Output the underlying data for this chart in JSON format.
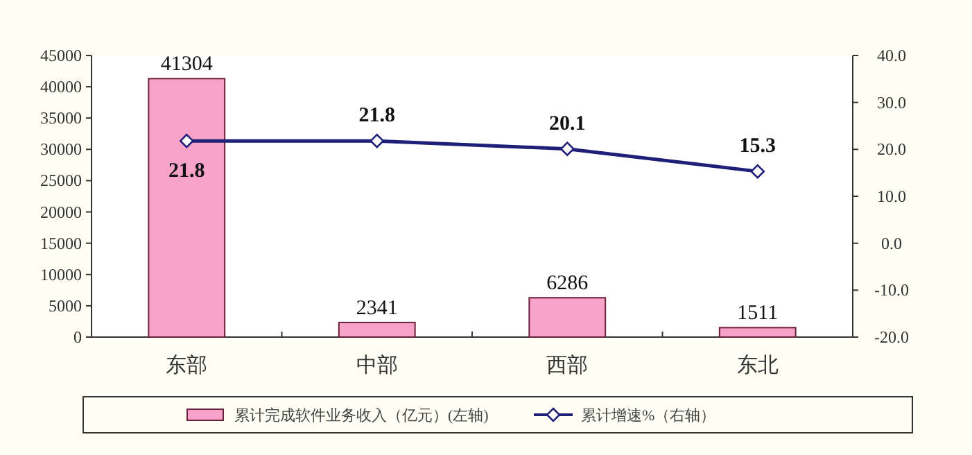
{
  "chart_data": {
    "type": "bar",
    "categories": [
      "东部",
      "中部",
      "西部",
      "东北"
    ],
    "series": [
      {
        "name": "累计完成软件业务收入（亿元）(左轴)",
        "color": "#f7a3c9",
        "values": [
          41304,
          2341,
          6286,
          1511
        ]
      },
      {
        "name": "累计增速%（右轴）",
        "type": "line",
        "axis": "y2",
        "color": "#1f1f7a",
        "marker": "diamond",
        "values": [
          21.8,
          21.8,
          20.1,
          15.3
        ]
      }
    ],
    "ylim": [
      0,
      45000
    ],
    "yticks": [
      0,
      5000,
      10000,
      15000,
      20000,
      25000,
      30000,
      35000,
      40000,
      45000
    ],
    "y2lim": [
      -20,
      40
    ],
    "y2ticks": [
      {
        "value": -20,
        "label": "-20.0"
      },
      {
        "value": -10,
        "label": "-10.0"
      },
      {
        "value": 0,
        "label": "0.0"
      },
      {
        "value": 10,
        "label": "10.0"
      },
      {
        "value": 20,
        "label": "20.0"
      },
      {
        "value": 30,
        "label": "30.0"
      },
      {
        "value": 40,
        "label": "40.0"
      }
    ],
    "data_labels": true,
    "legend": "bottom",
    "grid": false
  }
}
